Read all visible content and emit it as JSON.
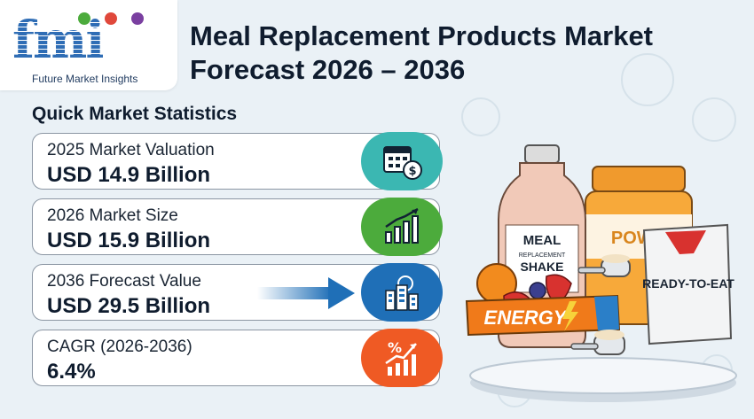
{
  "brand": {
    "logo_text": "fmi",
    "tagline": "Future Market Insights"
  },
  "title": "Meal Replacement Products Market Forecast 2026 – 2036",
  "stats_heading": "Quick Market Statistics",
  "stats": [
    {
      "label": "2025 Market Valuation",
      "value": "USD 14.9 Billion",
      "icon": "calendar-money-icon",
      "color": "#3bb7b2"
    },
    {
      "label": "2026 Market Size",
      "value": "USD 15.9 Billion",
      "icon": "bar-chart-growth-icon",
      "color": "#4cab3c"
    },
    {
      "label": "2036 Forecast Value",
      "value": "USD 29.5 Billion",
      "icon": "city-buildings-icon",
      "color": "#1f6fb7"
    },
    {
      "label": "CAGR (2026-2036)",
      "value": "6.4%",
      "icon": "percent-growth-icon",
      "color": "#ef5a24"
    }
  ],
  "illustration": {
    "bottle_label_main": "MEAL",
    "bottle_label_sub": "REPLACEMENT",
    "bottle_label_bottom": "SHAKE",
    "jar_label": "POWD",
    "pouch_label": "READY-TO-EAT",
    "bar_label": "ENERGY"
  },
  "colors": {
    "title": "#0f1c2e",
    "brand_blue": "#2f6db5",
    "background": "#eaf1f6"
  }
}
